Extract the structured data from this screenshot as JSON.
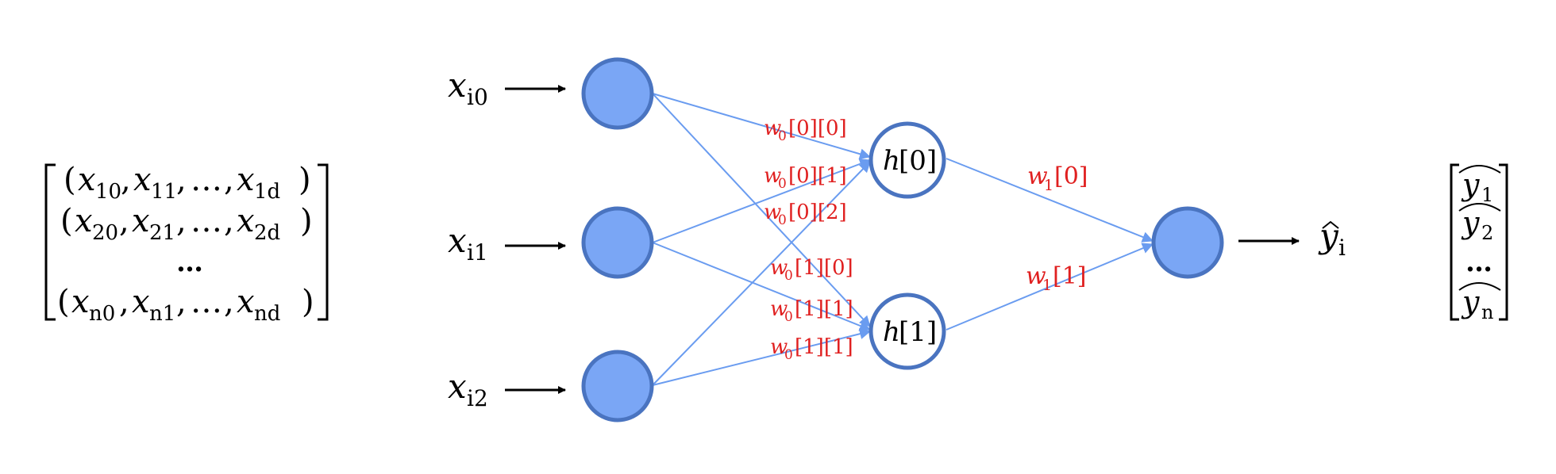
{
  "colors": {
    "node_fill": "#7aa6f5",
    "node_stroke": "#4a74c0",
    "hidden_stroke": "#4a74c0",
    "edge": "#6a9cf0",
    "weight_label": "#e02020",
    "arrow": "#000000"
  },
  "input_matrix": {
    "rows": [
      {
        "x": [
          "x",
          "x",
          "x"
        ],
        "sub": [
          "10",
          "11",
          "1d"
        ]
      },
      {
        "x": [
          "x",
          "x",
          "x"
        ],
        "sub": [
          "20",
          "21",
          "2d"
        ]
      },
      {
        "x": [
          "x",
          "x",
          "x"
        ],
        "sub": [
          "n0",
          "n1",
          "nd"
        ]
      }
    ],
    "ellipsis": "…",
    "dots_row": "…"
  },
  "inputs": [
    {
      "label": "x",
      "sub": "i0"
    },
    {
      "label": "x",
      "sub": "i1"
    },
    {
      "label": "x",
      "sub": "i2"
    }
  ],
  "hidden": [
    {
      "label": "h",
      "index": "[0]"
    },
    {
      "label": "h",
      "index": "[1]"
    }
  ],
  "weights_layer0": [
    {
      "w": "w",
      "sub": "0",
      "idx": "[0][0]"
    },
    {
      "w": "w",
      "sub": "0",
      "idx": "[0][1]"
    },
    {
      "w": "w",
      "sub": "0",
      "idx": "[0][2]"
    },
    {
      "w": "w",
      "sub": "0",
      "idx": "[1][0]"
    },
    {
      "w": "w",
      "sub": "0",
      "idx": "[1][1]"
    },
    {
      "w": "w",
      "sub": "0",
      "idx": "[1][1]"
    }
  ],
  "weights_layer1": [
    {
      "w": "w",
      "sub": "1",
      "idx": "[0]"
    },
    {
      "w": "w",
      "sub": "1",
      "idx": "[1]"
    }
  ],
  "output": {
    "label": "y",
    "sub": "i"
  },
  "output_vector": {
    "rows": [
      {
        "label": "y",
        "sub": "1"
      },
      {
        "label": "y",
        "sub": "2"
      },
      {
        "label": "y",
        "sub": "n"
      }
    ],
    "dots": "…"
  }
}
